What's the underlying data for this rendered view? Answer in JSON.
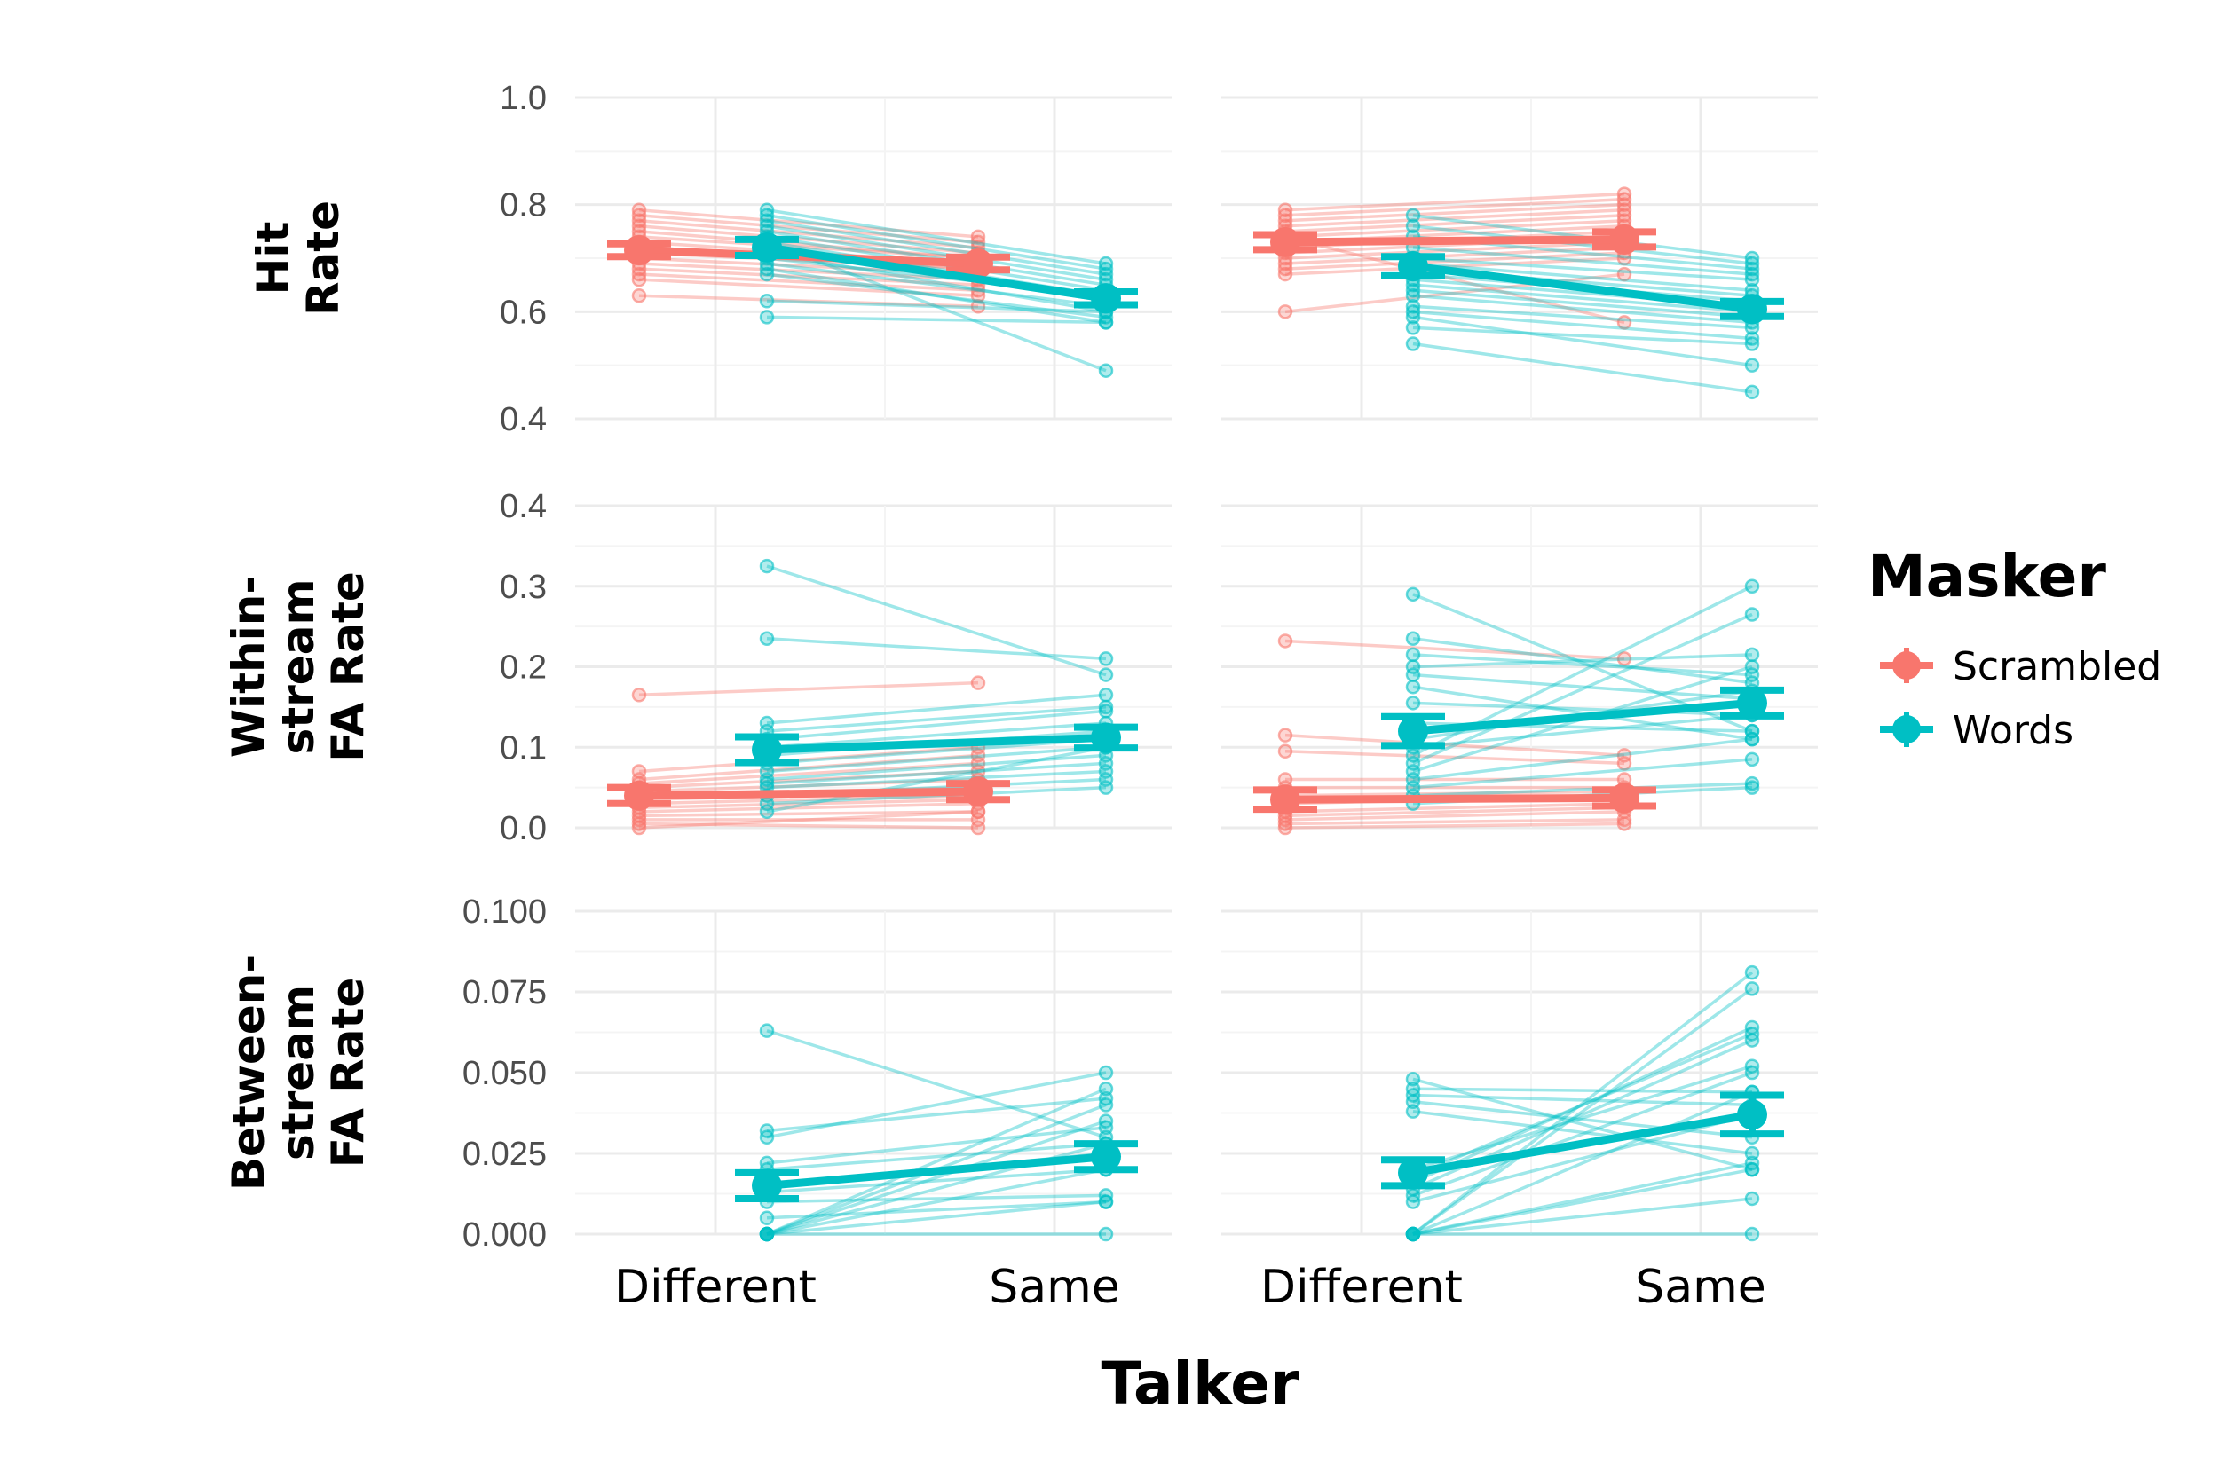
{
  "chart_data": {
    "type": "line",
    "xlabel": "Talker",
    "x_categories": [
      "Different",
      "Same"
    ],
    "legend": {
      "title": "Masker",
      "placement": "right",
      "entries": [
        {
          "name": "Scrambled",
          "color": "#F8766D"
        },
        {
          "name": "Words",
          "color": "#00BFC4"
        }
      ]
    },
    "rows": [
      {
        "label": "Hit\nRate",
        "ylim": [
          0.4,
          1.0
        ],
        "ticks": [
          {
            "v": 0.4,
            "label": "0.4"
          },
          {
            "v": 0.6,
            "label": "0.6"
          },
          {
            "v": 0.8,
            "label": "0.8"
          },
          {
            "v": 1.0,
            "label": "1.0"
          }
        ]
      },
      {
        "label": "Within-\nstream\nFA Rate",
        "ylim": [
          0.0,
          0.4
        ],
        "ticks": [
          {
            "v": 0.0,
            "label": "0.0"
          },
          {
            "v": 0.1,
            "label": "0.1"
          },
          {
            "v": 0.2,
            "label": "0.2"
          },
          {
            "v": 0.3,
            "label": "0.3"
          },
          {
            "v": 0.4,
            "label": "0.4"
          }
        ]
      },
      {
        "label": "Between-\nstream\nFA Rate",
        "ylim": [
          0.0,
          0.1
        ],
        "ticks": [
          {
            "v": 0.0,
            "label": "0.000"
          },
          {
            "v": 0.025,
            "label": "0.025"
          },
          {
            "v": 0.05,
            "label": "0.050"
          },
          {
            "v": 0.075,
            "label": "0.075"
          },
          {
            "v": 0.1,
            "label": "0.100"
          }
        ]
      }
    ],
    "panels": [
      {
        "row": 0,
        "col": 0,
        "means": {
          "Scrambled": [
            0.715,
            0.69
          ],
          "Words": [
            0.72,
            0.625
          ]
        },
        "errors": {
          "Scrambled": [
            0.012,
            0.012
          ],
          "Words": [
            0.015,
            0.012
          ]
        },
        "subjects": {
          "Scrambled": [
            [
              0.79,
              0.74
            ],
            [
              0.78,
              0.73
            ],
            [
              0.77,
              0.72
            ],
            [
              0.76,
              0.71
            ],
            [
              0.75,
              0.7
            ],
            [
              0.74,
              0.7
            ],
            [
              0.73,
              0.69
            ],
            [
              0.72,
              0.69
            ],
            [
              0.72,
              0.68
            ],
            [
              0.71,
              0.68
            ],
            [
              0.7,
              0.67
            ],
            [
              0.69,
              0.66
            ],
            [
              0.68,
              0.65
            ],
            [
              0.67,
              0.64
            ],
            [
              0.66,
              0.63
            ],
            [
              0.63,
              0.61
            ]
          ],
          "Words": [
            [
              0.79,
              0.69
            ],
            [
              0.78,
              0.68
            ],
            [
              0.77,
              0.67
            ],
            [
              0.76,
              0.66
            ],
            [
              0.75,
              0.65
            ],
            [
              0.74,
              0.64
            ],
            [
              0.73,
              0.63
            ],
            [
              0.72,
              0.62
            ],
            [
              0.71,
              0.6
            ],
            [
              0.7,
              0.63
            ],
            [
              0.69,
              0.61
            ],
            [
              0.68,
              0.58
            ],
            [
              0.67,
              0.59
            ],
            [
              0.62,
              0.6
            ],
            [
              0.59,
              0.58
            ],
            [
              0.73,
              0.49
            ]
          ]
        }
      },
      {
        "row": 0,
        "col": 1,
        "means": {
          "Scrambled": [
            0.73,
            0.735
          ],
          "Words": [
            0.685,
            0.605
          ]
        },
        "errors": {
          "Scrambled": [
            0.014,
            0.014
          ],
          "Words": [
            0.018,
            0.014
          ]
        },
        "subjects": {
          "Scrambled": [
            [
              0.79,
              0.82
            ],
            [
              0.78,
              0.81
            ],
            [
              0.77,
              0.8
            ],
            [
              0.76,
              0.79
            ],
            [
              0.75,
              0.78
            ],
            [
              0.74,
              0.77
            ],
            [
              0.73,
              0.76
            ],
            [
              0.72,
              0.75
            ],
            [
              0.71,
              0.74
            ],
            [
              0.7,
              0.73
            ],
            [
              0.69,
              0.72
            ],
            [
              0.68,
              0.71
            ],
            [
              0.67,
              0.7
            ],
            [
              0.6,
              0.67
            ],
            [
              0.74,
              0.58
            ]
          ],
          "Words": [
            [
              0.78,
              0.7
            ],
            [
              0.76,
              0.69
            ],
            [
              0.74,
              0.68
            ],
            [
              0.72,
              0.67
            ],
            [
              0.7,
              0.66
            ],
            [
              0.69,
              0.64
            ],
            [
              0.68,
              0.63
            ],
            [
              0.67,
              0.62
            ],
            [
              0.66,
              0.61
            ],
            [
              0.65,
              0.6
            ],
            [
              0.64,
              0.59
            ],
            [
              0.63,
              0.58
            ],
            [
              0.61,
              0.57
            ],
            [
              0.6,
              0.55
            ],
            [
              0.59,
              0.5
            ],
            [
              0.57,
              0.54
            ],
            [
              0.54,
              0.45
            ]
          ]
        }
      },
      {
        "row": 1,
        "col": 0,
        "means": {
          "Scrambled": [
            0.04,
            0.045
          ],
          "Words": [
            0.097,
            0.112
          ]
        },
        "errors": {
          "Scrambled": [
            0.01,
            0.01
          ],
          "Words": [
            0.016,
            0.013
          ]
        },
        "subjects": {
          "Scrambled": [
            [
              0.165,
              0.18
            ],
            [
              0.07,
              0.1
            ],
            [
              0.06,
              0.09
            ],
            [
              0.055,
              0.08
            ],
            [
              0.05,
              0.07
            ],
            [
              0.045,
              0.06
            ],
            [
              0.04,
              0.05
            ],
            [
              0.035,
              0.045
            ],
            [
              0.03,
              0.04
            ],
            [
              0.025,
              0.035
            ],
            [
              0.02,
              0.03
            ],
            [
              0.015,
              0.02
            ],
            [
              0.01,
              0.01
            ],
            [
              0.005,
              0.0
            ],
            [
              0.0,
              0.02
            ]
          ],
          "Words": [
            [
              0.325,
              0.19
            ],
            [
              0.235,
              0.21
            ],
            [
              0.13,
              0.165
            ],
            [
              0.12,
              0.15
            ],
            [
              0.11,
              0.145
            ],
            [
              0.1,
              0.13
            ],
            [
              0.09,
              0.12
            ],
            [
              0.08,
              0.11
            ],
            [
              0.07,
              0.1
            ],
            [
              0.06,
              0.09
            ],
            [
              0.055,
              0.08
            ],
            [
              0.05,
              0.07
            ],
            [
              0.04,
              0.06
            ],
            [
              0.03,
              0.05
            ],
            [
              0.02,
              0.1
            ]
          ]
        }
      },
      {
        "row": 1,
        "col": 1,
        "means": {
          "Scrambled": [
            0.035,
            0.037
          ],
          "Words": [
            0.12,
            0.155
          ]
        },
        "errors": {
          "Scrambled": [
            0.012,
            0.01
          ],
          "Words": [
            0.018,
            0.016
          ]
        },
        "subjects": {
          "Scrambled": [
            [
              0.232,
              0.21
            ],
            [
              0.115,
              0.09
            ],
            [
              0.095,
              0.08
            ],
            [
              0.06,
              0.06
            ],
            [
              0.05,
              0.05
            ],
            [
              0.04,
              0.045
            ],
            [
              0.03,
              0.04
            ],
            [
              0.02,
              0.03
            ],
            [
              0.015,
              0.025
            ],
            [
              0.01,
              0.02
            ],
            [
              0.005,
              0.01
            ],
            [
              0.0,
              0.005
            ]
          ],
          "Words": [
            [
              0.29,
              0.12
            ],
            [
              0.235,
              0.18
            ],
            [
              0.215,
              0.19
            ],
            [
              0.2,
              0.215
            ],
            [
              0.19,
              0.16
            ],
            [
              0.175,
              0.11
            ],
            [
              0.155,
              0.14
            ],
            [
              0.13,
              0.12
            ],
            [
              0.11,
              0.17
            ],
            [
              0.1,
              0.14
            ],
            [
              0.09,
              0.3
            ],
            [
              0.08,
              0.265
            ],
            [
              0.07,
              0.2
            ],
            [
              0.06,
              0.11
            ],
            [
              0.05,
              0.085
            ],
            [
              0.04,
              0.055
            ],
            [
              0.03,
              0.05
            ]
          ]
        }
      },
      {
        "row": 2,
        "col": 0,
        "means": {
          "Words": [
            0.015,
            0.024
          ]
        },
        "errors": {
          "Words": [
            0.004,
            0.004
          ]
        },
        "subjects": {
          "Words": [
            [
              0.063,
              0.03
            ],
            [
              0.032,
              0.042
            ],
            [
              0.03,
              0.05
            ],
            [
              0.022,
              0.033
            ],
            [
              0.02,
              0.028
            ],
            [
              0.015,
              0.025
            ],
            [
              0.013,
              0.02
            ],
            [
              0.01,
              0.012
            ],
            [
              0.005,
              0.01
            ],
            [
              0.0,
              0.045
            ],
            [
              0.0,
              0.04
            ],
            [
              0.0,
              0.035
            ],
            [
              0.0,
              0.02
            ],
            [
              0.0,
              0.01
            ],
            [
              0.0,
              0.0
            ],
            [
              0.0,
              0.028
            ]
          ]
        }
      },
      {
        "row": 2,
        "col": 1,
        "means": {
          "Words": [
            0.019,
            0.037
          ]
        },
        "errors": {
          "Words": [
            0.004,
            0.006
          ]
        },
        "subjects": {
          "Words": [
            [
              0.048,
              0.02
            ],
            [
              0.045,
              0.044
            ],
            [
              0.043,
              0.04
            ],
            [
              0.041,
              0.03
            ],
            [
              0.038,
              0.025
            ],
            [
              0.02,
              0.052
            ],
            [
              0.018,
              0.062
            ],
            [
              0.016,
              0.064
            ],
            [
              0.014,
              0.06
            ],
            [
              0.012,
              0.05
            ],
            [
              0.01,
              0.037
            ],
            [
              0.0,
              0.081
            ],
            [
              0.0,
              0.076
            ],
            [
              0.0,
              0.044
            ],
            [
              0.0,
              0.02
            ],
            [
              0.0,
              0.011
            ],
            [
              0.0,
              0.0
            ],
            [
              0.0,
              0.022
            ]
          ]
        }
      }
    ]
  }
}
